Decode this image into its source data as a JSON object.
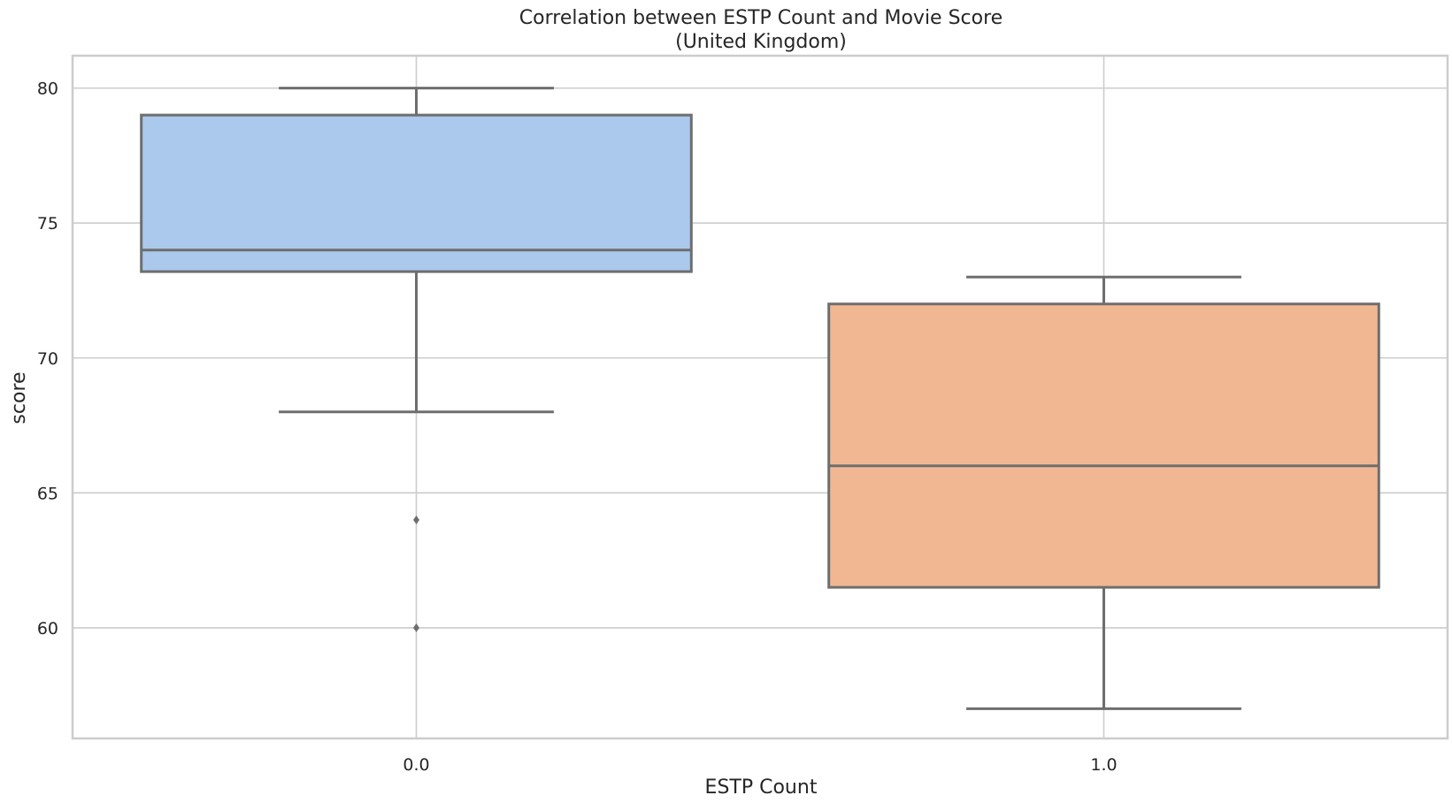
{
  "chart_data": {
    "type": "box",
    "title": "Correlation between ESTP Count and Movie Score",
    "subtitle": "(United Kingdom)",
    "xlabel": "ESTP Count",
    "ylabel": "score",
    "ylim": [
      55.9,
      81.2
    ],
    "yticks": [
      "60",
      "65",
      "70",
      "75",
      "80"
    ],
    "categories": [
      "0.0",
      "1.0"
    ],
    "grid": true,
    "series": [
      {
        "category": "0.0",
        "color": "#abc9ed",
        "whisker_low": 68,
        "q1": 73.2,
        "median": 74,
        "q3": 79,
        "whisker_high": 80,
        "outliers": [
          64,
          60
        ]
      },
      {
        "category": "1.0",
        "color": "#f1b793",
        "whisker_low": 57,
        "q1": 61.5,
        "median": 66,
        "q3": 72,
        "whisker_high": 73,
        "outliers": []
      }
    ]
  }
}
